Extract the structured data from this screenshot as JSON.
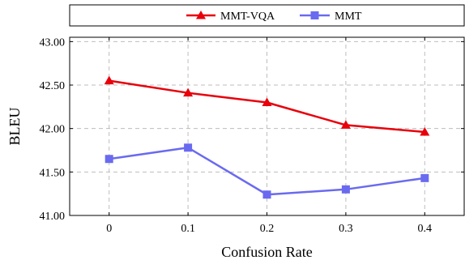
{
  "chart_data": {
    "type": "line",
    "xlabel": "Confusion Rate",
    "ylabel": "BLEU",
    "x": [
      0,
      0.1,
      0.2,
      0.3,
      0.4
    ],
    "x_tick_labels": [
      "0",
      "0.1",
      "0.2",
      "0.3",
      "0.4"
    ],
    "y_tick_values": [
      41.0,
      41.5,
      42.0,
      42.5,
      43.0
    ],
    "y_tick_labels": [
      "41.00",
      "41.50",
      "42.00",
      "42.50",
      "43.00"
    ],
    "xlim": [
      -0.05,
      0.45
    ],
    "ylim": [
      41.0,
      43.05
    ],
    "grid": true,
    "grid_style": "dashed",
    "legend_position": "top",
    "series": [
      {
        "name": "MMT-VQA",
        "marker": "triangle",
        "color": "#e8000b",
        "values": [
          42.55,
          42.41,
          42.3,
          42.04,
          41.96
        ]
      },
      {
        "name": "MMT",
        "marker": "square",
        "color": "#6a6af0",
        "values": [
          41.65,
          41.78,
          41.24,
          41.3,
          41.43
        ]
      }
    ]
  }
}
